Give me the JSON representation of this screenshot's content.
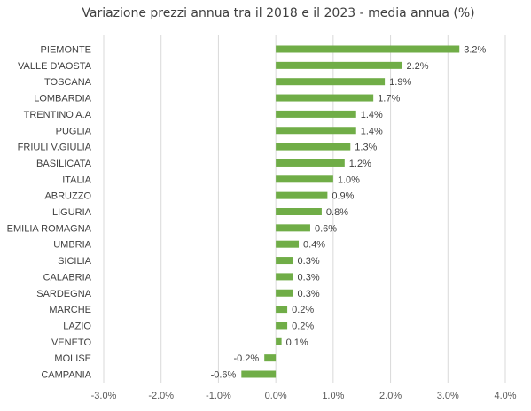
{
  "chart_data": {
    "type": "bar",
    "orientation": "horizontal",
    "title": "Variazione prezzi annua tra il 2018 e il 2023 - media annua (%)",
    "categories": [
      "PIEMONTE",
      "VALLE D'AOSTA",
      "TOSCANA",
      "LOMBARDIA",
      "TRENTINO A.A",
      "PUGLIA",
      "FRIULI V.GIULIA",
      "BASILICATA",
      "ITALIA",
      "ABRUZZO",
      "LIGURIA",
      "EMILIA ROMAGNA",
      "UMBRIA",
      "SICILIA",
      "CALABRIA",
      "SARDEGNA",
      "MARCHE",
      "LAZIO",
      "VENETO",
      "MOLISE",
      "CAMPANIA"
    ],
    "values": [
      3.2,
      2.2,
      1.9,
      1.7,
      1.4,
      1.4,
      1.3,
      1.2,
      1.0,
      0.9,
      0.8,
      0.6,
      0.4,
      0.3,
      0.3,
      0.3,
      0.2,
      0.2,
      0.1,
      -0.2,
      -0.6
    ],
    "value_labels": [
      "3.2%",
      "2.2%",
      "1.9%",
      "1.7%",
      "1.4%",
      "1.4%",
      "1.3%",
      "1.2%",
      "1.0%",
      "0.9%",
      "0.8%",
      "0.6%",
      "0.4%",
      "0.3%",
      "0.3%",
      "0.3%",
      "0.2%",
      "0.2%",
      "0.1%",
      "-0.2%",
      "-0.6%"
    ],
    "xlim": [
      -3.0,
      4.0
    ],
    "xticks": [
      -3.0,
      -2.0,
      -1.0,
      0.0,
      1.0,
      2.0,
      3.0,
      4.0
    ],
    "xtick_labels": [
      "-3.0%",
      "-2.0%",
      "-1.0%",
      "0.0%",
      "1.0%",
      "2.0%",
      "3.0%",
      "4.0%"
    ],
    "xlabel": "",
    "ylabel": "",
    "grid": "vertical",
    "legend": "none",
    "bar_color": "#70ad47",
    "grid_color": "#d9d9d9",
    "text_color": "#404040"
  }
}
